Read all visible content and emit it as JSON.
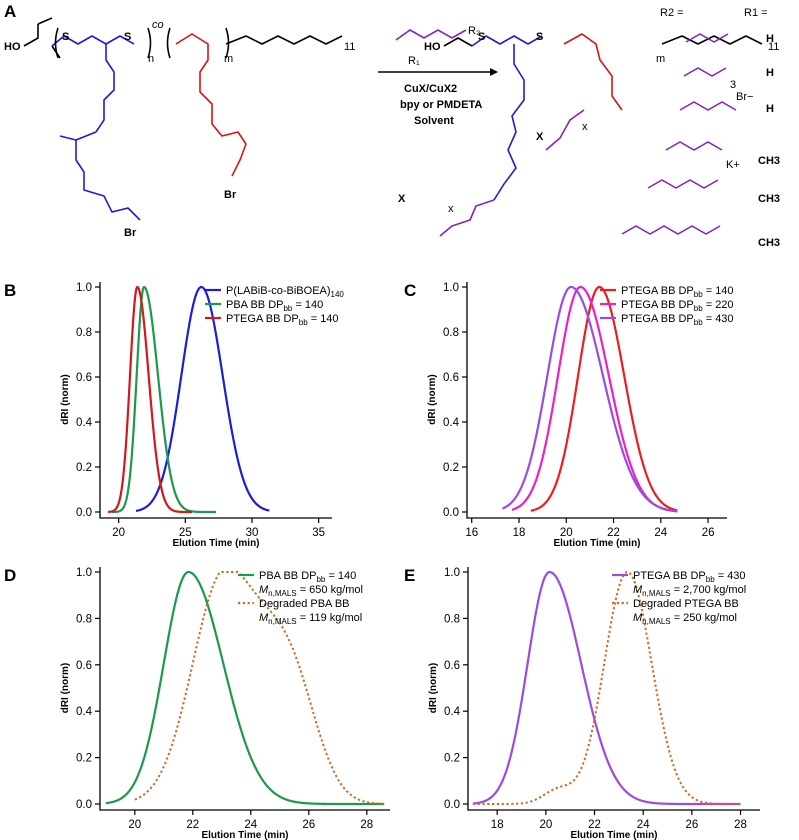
{
  "scheme": {
    "panel_letter": "A",
    "reagent_label": "R",
    "r1_subscript": "1",
    "r2_subscript": "2",
    "conditions": [
      "CuX/CuX2",
      "bpy or PMDETA",
      "Solvent"
    ],
    "backbone_label_co": "co",
    "repeat_n": "n",
    "repeat_m": "m",
    "repeat_x": "x",
    "chain_11": "11",
    "ho_label": "HO",
    "sulfur": "S",
    "bromine": "Br",
    "halide": "X",
    "header_r2": "R2 =",
    "header_r1": "R1 =",
    "r1_values": [
      "H",
      "H",
      "H",
      "CH3",
      "CH3",
      "CH3"
    ],
    "r2_labels": [
      "",
      "3",
      "Br−",
      "K+",
      "",
      ""
    ],
    "colors": {
      "blue": "#1c1cdc",
      "red": "#e01010",
      "purple": "#8a1fbe"
    }
  },
  "chart_data": [
    {
      "panel": "B",
      "type": "line",
      "xlabel": "Elution Time (min)",
      "ylabel": "dRI (norm)",
      "xlim": [
        18.6,
        36
      ],
      "ylim": [
        0,
        1
      ],
      "xticks": [
        20,
        25,
        30,
        35
      ],
      "yticks": [
        0.0,
        0.2,
        0.4,
        0.6,
        0.8,
        1.0
      ],
      "legend_position": "top-right",
      "series": [
        {
          "name": "P(LABiB-co-BiBOEA)140",
          "legend_main": "P(LABiB-co-BiBOEA)",
          "legend_sub": "140",
          "color": "#1c1cdc",
          "dash": "solid",
          "peak": 26.2,
          "sigma_left": 1.5,
          "sigma_right": 1.6,
          "xmin": 21.3,
          "xmax": 31.3
        },
        {
          "name": "PBA BB DPbb = 140",
          "legend_main": "PBA BB DP",
          "legend_sub": "bb",
          "legend_tail": " = 140",
          "color": "#1a9a4a",
          "dash": "solid",
          "peak": 21.9,
          "sigma_left": 0.55,
          "sigma_right": 1.05,
          "xmin": 19.5,
          "xmax": 27.3
        },
        {
          "name": "PTEGA BB DPbb = 140",
          "legend_main": "PTEGA BB DP",
          "legend_sub": "bb",
          "legend_tail": " = 140",
          "color": "#d41818",
          "dash": "solid",
          "peak": 21.4,
          "sigma_left": 0.55,
          "sigma_right": 0.85,
          "xmin": 19.2,
          "xmax": 25.5
        }
      ]
    },
    {
      "panel": "C",
      "type": "line",
      "xlabel": "Elution Time (min)",
      "ylabel": "dRI (norm)",
      "xlim": [
        15.8,
        26.8
      ],
      "ylim": [
        0,
        1
      ],
      "xticks": [
        16,
        18,
        20,
        22,
        24,
        26
      ],
      "yticks": [
        0.0,
        0.2,
        0.4,
        0.6,
        0.8,
        1.0
      ],
      "legend_position": "top-right",
      "series": [
        {
          "name": "PTEGA BB DPbb = 140",
          "legend_main": "PTEGA BB DP",
          "legend_sub": "bb",
          "legend_tail": " = 140",
          "color": "#ee1c1c",
          "dash": "solid",
          "peak": 21.4,
          "sigma_left": 0.9,
          "sigma_right": 1.05,
          "xmin": 18.5,
          "xmax": 24.7
        },
        {
          "name": "PTEGA BB DPbb = 220",
          "legend_main": "PTEGA BB DP",
          "legend_sub": "bb",
          "legend_tail": " = 220",
          "color": "#ee1fc6",
          "dash": "solid",
          "peak": 20.6,
          "sigma_left": 0.95,
          "sigma_right": 1.2,
          "xmin": 17.7,
          "xmax": 24.7
        },
        {
          "name": "PTEGA BB DPbb = 430",
          "legend_main": "PTEGA BB DP",
          "legend_sub": "bb",
          "legend_tail": " = 430",
          "color": "#9b4ae6",
          "dash": "solid",
          "peak": 20.2,
          "sigma_left": 1.0,
          "sigma_right": 1.35,
          "xmin": 17.3,
          "xmax": 24.7
        }
      ]
    },
    {
      "panel": "D",
      "type": "line",
      "xlabel": "Elution Time (min)",
      "ylabel": "dRI (norm)",
      "xlim": [
        18.8,
        28.8
      ],
      "ylim": [
        0,
        1
      ],
      "xticks": [
        20,
        22,
        24,
        26,
        28
      ],
      "yticks": [
        0.0,
        0.2,
        0.4,
        0.6,
        0.8,
        1.0
      ],
      "legend_position": "top-right",
      "series": [
        {
          "name": "PBA BB DPbb = 140",
          "legend_main": "PBA BB DP",
          "legend_sub": "bb",
          "legend_tail": " = 140",
          "legend_line2_main": "M",
          "legend_line2_sub": "n,MALS",
          "legend_line2_tail": " = 650 kg/mol",
          "color": "#1a9a4a",
          "dash": "solid",
          "peak": 21.85,
          "sigma_left": 0.85,
          "sigma_right": 1.2,
          "xmin": 19.0,
          "xmax": 28.6
        },
        {
          "name": "Degraded PBA BB",
          "legend_main": "Degraded PBA BB",
          "legend_line2_main": "M",
          "legend_line2_sub": "n,MALS",
          "legend_line2_tail": " = 119 kg/mol",
          "color": "#d9651a",
          "dash": "dotted",
          "peak": 23.1,
          "sigma_left": 1.1,
          "sigma_right": 1.35,
          "shoulder_center": 25.4,
          "shoulder_amp": 0.45,
          "shoulder_sigma": 0.9,
          "xmin": 20.0,
          "xmax": 28.6
        }
      ]
    },
    {
      "panel": "E",
      "type": "line",
      "xlabel": "Elution Time (min)",
      "ylabel": "dRI (norm)",
      "xlim": [
        16.8,
        28.8
      ],
      "ylim": [
        0,
        1
      ],
      "xticks": [
        18,
        20,
        22,
        24,
        26,
        28
      ],
      "yticks": [
        0.0,
        0.2,
        0.4,
        0.6,
        0.8,
        1.0
      ],
      "legend_position": "top-right",
      "series": [
        {
          "name": "PTEGA BB DPbb = 430",
          "legend_main": "PTEGA BB DP",
          "legend_sub": "bb",
          "legend_tail": " = 430",
          "legend_line2_main": "M",
          "legend_line2_sub": "n,MALS",
          "legend_line2_tail": " = 2,700 kg/mol",
          "color": "#9b4ae6",
          "dash": "solid",
          "peak": 20.15,
          "sigma_left": 0.9,
          "sigma_right": 1.3,
          "xmin": 17.0,
          "xmax": 28.0
        },
        {
          "name": "Degraded PTEGA BB",
          "legend_main": "Degraded PTEGA BB",
          "legend_line2_main": "M",
          "legend_line2_sub": "n,MALS",
          "legend_line2_tail": " = 250 kg/mol",
          "color": "#d9651a",
          "dash": "dotted",
          "peak": 23.35,
          "sigma_left": 0.95,
          "sigma_right": 1.0,
          "shoulder_center": 20.5,
          "shoulder_amp": 0.06,
          "shoulder_sigma": 0.6,
          "xmin": 17.0,
          "xmax": 28.0
        }
      ]
    }
  ]
}
